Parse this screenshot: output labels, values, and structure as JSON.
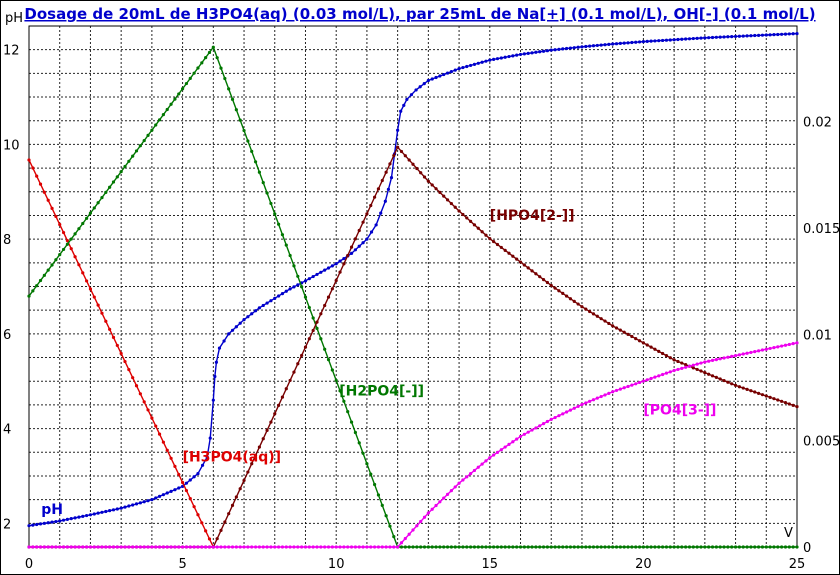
{
  "chart_data": {
    "type": "line",
    "title": "Dosage de 20mL de H3PO4(aq) (0.03 mol/L),  par 25mL  de Na[+] (0.1 mol/L), OH[-] (0.1 mol/L)",
    "xlabel": "V",
    "ylabel": "pH",
    "xlim": [
      0,
      25
    ],
    "ylim": [
      1.5,
      12.5
    ],
    "y2lim": [
      0,
      0.0245
    ],
    "grid": true,
    "x_ticks": [
      "0",
      "5",
      "10",
      "15",
      "20",
      "25"
    ],
    "y_ticks": [
      "2",
      "4",
      "6",
      "8",
      "10",
      "12"
    ],
    "y2_ticks": [
      "0",
      "0.005",
      "0.01",
      "0.015",
      "0.02"
    ],
    "series": [
      {
        "name": "pH",
        "axis": "left",
        "color": "#0000cc",
        "x": [
          0,
          1,
          2,
          3,
          4,
          5,
          5.5,
          5.8,
          5.9,
          6.0,
          6.05,
          6.1,
          6.2,
          6.5,
          7,
          7.5,
          8,
          8.5,
          9,
          9.5,
          10,
          10.5,
          11,
          11.3,
          11.6,
          11.8,
          11.9,
          12.0,
          12.1,
          12.3,
          12.6,
          13,
          14,
          15,
          16,
          17,
          18,
          19,
          20,
          21,
          22,
          23,
          24,
          25
        ],
        "values": [
          1.95,
          2.05,
          2.18,
          2.32,
          2.5,
          2.78,
          3.05,
          3.4,
          3.8,
          4.6,
          5.1,
          5.4,
          5.7,
          6.0,
          6.3,
          6.55,
          6.75,
          6.95,
          7.12,
          7.3,
          7.48,
          7.7,
          8.0,
          8.3,
          8.8,
          9.3,
          9.8,
          10.3,
          10.7,
          10.95,
          11.15,
          11.35,
          11.6,
          11.78,
          11.9,
          11.99,
          12.06,
          12.12,
          12.17,
          12.21,
          12.25,
          12.28,
          12.31,
          12.34
        ]
      },
      {
        "name": "[H3PO4(aq)]",
        "axis": "right",
        "color": "#dd0000",
        "x": [
          0,
          6
        ],
        "values": [
          0.0182,
          0.0
        ]
      },
      {
        "name": "[H2PO4[-]]",
        "axis": "right",
        "color": "#007700",
        "x": [
          0,
          6,
          12,
          25
        ],
        "values": [
          0.0118,
          0.0235,
          0.0,
          0.0
        ]
      },
      {
        "name": "[HPO4[2-]]",
        "axis": "right",
        "color": "#770000",
        "x": [
          0,
          6,
          12,
          13,
          14,
          15,
          16,
          17,
          18,
          19,
          20,
          21,
          22,
          23,
          24,
          25
        ],
        "values": [
          0.0,
          0.0,
          0.0188,
          0.0172,
          0.0158,
          0.0145,
          0.0134,
          0.0123,
          0.0113,
          0.0104,
          0.0096,
          0.0088,
          0.0082,
          0.0076,
          0.0071,
          0.0066
        ]
      },
      {
        "name": "[PO4[3-]]",
        "axis": "right",
        "color": "#ee00ee",
        "x": [
          0,
          12,
          13,
          14,
          15,
          16,
          17,
          18,
          19,
          20,
          21,
          22,
          23,
          24,
          25
        ],
        "values": [
          0.0,
          0.0,
          0.0016,
          0.003,
          0.0042,
          0.0052,
          0.006,
          0.0067,
          0.0073,
          0.0078,
          0.0083,
          0.0087,
          0.009,
          0.0093,
          0.0096
        ]
      }
    ],
    "annotations": [
      {
        "text": "pH",
        "x": 0.4,
        "y": 2.2,
        "axis": "left",
        "color": "#0000cc"
      },
      {
        "text": "[H3PO4(aq)]",
        "x": 5.0,
        "y": 3.3,
        "axis": "left",
        "color": "#dd0000"
      },
      {
        "text": "[H2PO4[-]]",
        "x": 10.1,
        "y": 4.7,
        "axis": "left",
        "color": "#007700"
      },
      {
        "text": "[HPO4[2-]]",
        "x": 15.0,
        "y": 8.4,
        "axis": "left",
        "color": "#770000"
      },
      {
        "text": "[PO4[3-]]",
        "x": 20.0,
        "y": 4.3,
        "axis": "left",
        "color": "#ee00ee"
      }
    ]
  }
}
